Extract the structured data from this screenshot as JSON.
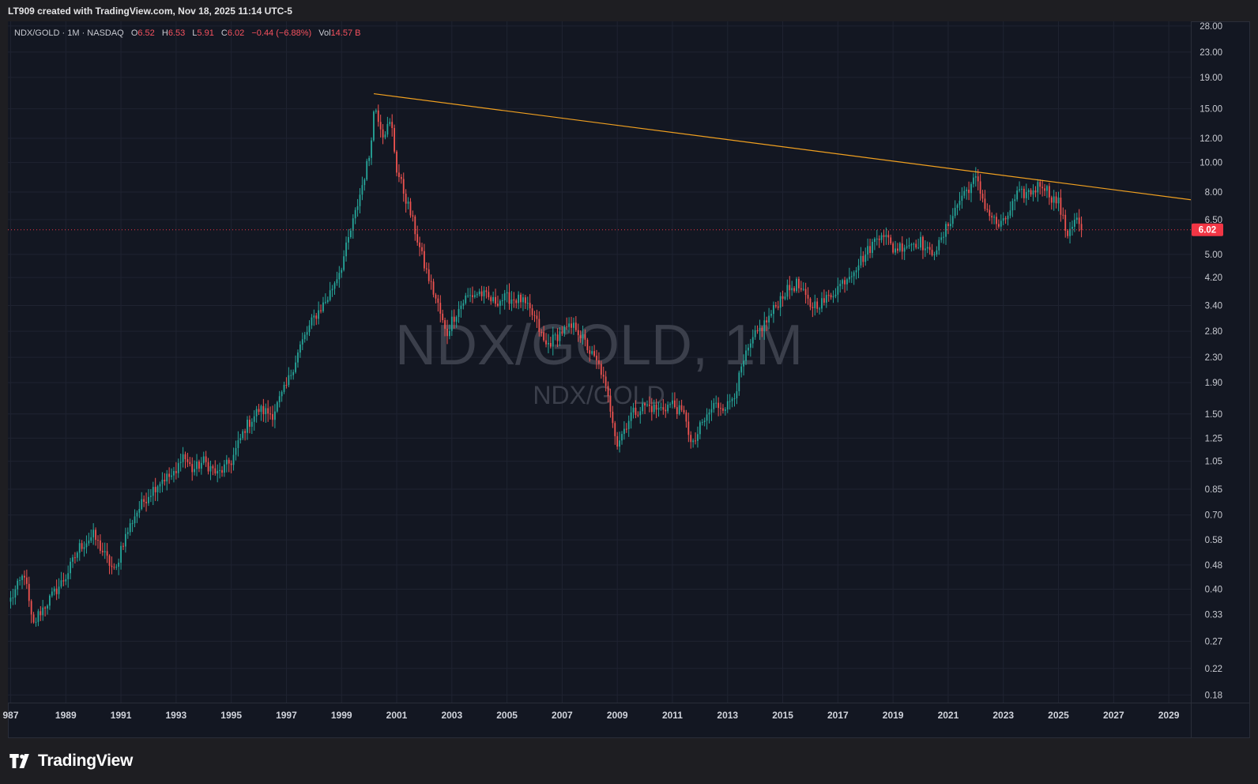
{
  "header": {
    "credit": "LT909 created with TradingView.com, Nov 18, 2025 11:14 UTC-5"
  },
  "legend": {
    "symbol": "NDX/GOLD · 1M · NASDAQ",
    "o_label": "O",
    "o_value": "6.52",
    "h_label": "H",
    "h_value": "6.53",
    "l_label": "L",
    "l_value": "5.91",
    "c_label": "C",
    "c_value": "6.02",
    "change": "−0.44 (−6.88%)",
    "vol_label": "Vol",
    "vol_value": "14.57 B"
  },
  "watermark": {
    "main": "NDX/GOLD, 1M",
    "sub": "NDX/GOLD"
  },
  "brand": {
    "name": "TradingView"
  },
  "colors": {
    "up": "#26a69a",
    "down": "#ef5350",
    "trendline": "#f0a020",
    "price_badge": "#f23645",
    "background": "#131722"
  },
  "chart_data": {
    "type": "candlestick",
    "scale": "log",
    "interval": "1M",
    "ylim": [
      0.17,
      29
    ],
    "xlim": [
      1986.9,
      2029.8
    ],
    "y_ticks": [
      "28.00",
      "23.00",
      "19.00",
      "15.00",
      "12.00",
      "10.00",
      "8.00",
      "6.50",
      "5.00",
      "4.20",
      "3.40",
      "2.80",
      "2.30",
      "1.90",
      "1.50",
      "1.25",
      "1.05",
      "0.85",
      "0.70",
      "0.58",
      "0.48",
      "0.40",
      "0.33",
      "0.27",
      "0.22",
      "0.18"
    ],
    "x_ticks": [
      "987",
      "1989",
      "1991",
      "1993",
      "1995",
      "1997",
      "1999",
      "2001",
      "2003",
      "2005",
      "2007",
      "2009",
      "2011",
      "2013",
      "2015",
      "2017",
      "2019",
      "2021",
      "2023",
      "2025",
      "2027",
      "2029"
    ],
    "last_price": "6.02",
    "trendline": {
      "from": [
        2000.17,
        16.8
      ],
      "to": [
        2029.8,
        7.55
      ]
    },
    "approx_path": [
      [
        1987.0,
        0.37
      ],
      [
        1987.5,
        0.45
      ],
      [
        1987.8,
        0.3
      ],
      [
        1988.0,
        0.33
      ],
      [
        1988.5,
        0.38
      ],
      [
        1989.0,
        0.44
      ],
      [
        1989.5,
        0.55
      ],
      [
        1990.0,
        0.6
      ],
      [
        1990.5,
        0.5
      ],
      [
        1990.8,
        0.45
      ],
      [
        1991.0,
        0.55
      ],
      [
        1991.5,
        0.7
      ],
      [
        1992.0,
        0.82
      ],
      [
        1992.5,
        0.92
      ],
      [
        1993.0,
        0.95
      ],
      [
        1993.2,
        1.12
      ],
      [
        1993.6,
        0.98
      ],
      [
        1994.0,
        1.05
      ],
      [
        1994.5,
        0.95
      ],
      [
        1995.0,
        1.05
      ],
      [
        1995.5,
        1.35
      ],
      [
        1996.0,
        1.55
      ],
      [
        1996.5,
        1.5
      ],
      [
        1997.0,
        1.85
      ],
      [
        1997.5,
        2.5
      ],
      [
        1998.0,
        3.1
      ],
      [
        1998.5,
        3.6
      ],
      [
        1999.0,
        4.6
      ],
      [
        1999.5,
        6.8
      ],
      [
        2000.0,
        10.5
      ],
      [
        2000.2,
        15.5
      ],
      [
        2000.5,
        12.5
      ],
      [
        2000.8,
        13.5
      ],
      [
        2001.0,
        9.5
      ],
      [
        2001.5,
        6.8
      ],
      [
        2002.0,
        4.6
      ],
      [
        2002.5,
        3.4
      ],
      [
        2002.8,
        2.7
      ],
      [
        2003.0,
        3.05
      ],
      [
        2003.5,
        3.6
      ],
      [
        2004.0,
        3.75
      ],
      [
        2004.5,
        3.5
      ],
      [
        2005.0,
        3.6
      ],
      [
        2005.5,
        3.55
      ],
      [
        2006.0,
        3.1
      ],
      [
        2006.4,
        2.5
      ],
      [
        2007.0,
        2.8
      ],
      [
        2007.5,
        2.9
      ],
      [
        2008.0,
        2.4
      ],
      [
        2008.4,
        2.1
      ],
      [
        2008.8,
        1.5
      ],
      [
        2009.0,
        1.2
      ],
      [
        2009.5,
        1.5
      ],
      [
        2010.0,
        1.6
      ],
      [
        2010.5,
        1.55
      ],
      [
        2011.0,
        1.62
      ],
      [
        2011.5,
        1.45
      ],
      [
        2011.7,
        1.15
      ],
      [
        2012.0,
        1.35
      ],
      [
        2012.5,
        1.6
      ],
      [
        2013.0,
        1.6
      ],
      [
        2013.3,
        1.8
      ],
      [
        2013.6,
        2.25
      ],
      [
        2014.0,
        2.7
      ],
      [
        2014.5,
        3.1
      ],
      [
        2015.0,
        3.7
      ],
      [
        2015.5,
        4.0
      ],
      [
        2016.0,
        3.4
      ],
      [
        2016.5,
        3.5
      ],
      [
        2017.0,
        3.9
      ],
      [
        2017.5,
        4.4
      ],
      [
        2018.0,
        5.0
      ],
      [
        2018.6,
        6.0
      ],
      [
        2019.0,
        5.2
      ],
      [
        2019.5,
        5.4
      ],
      [
        2020.0,
        5.5
      ],
      [
        2020.3,
        5.0
      ],
      [
        2020.7,
        5.4
      ],
      [
        2021.0,
        6.3
      ],
      [
        2021.5,
        7.8
      ],
      [
        2022.0,
        8.8
      ],
      [
        2022.4,
        7.0
      ],
      [
        2022.8,
        6.2
      ],
      [
        2023.0,
        6.3
      ],
      [
        2023.5,
        7.8
      ],
      [
        2024.0,
        8.0
      ],
      [
        2024.4,
        8.6
      ],
      [
        2024.8,
        7.6
      ],
      [
        2025.0,
        7.4
      ],
      [
        2025.3,
        5.8
      ],
      [
        2025.6,
        6.6
      ],
      [
        2025.9,
        6.02
      ]
    ]
  }
}
